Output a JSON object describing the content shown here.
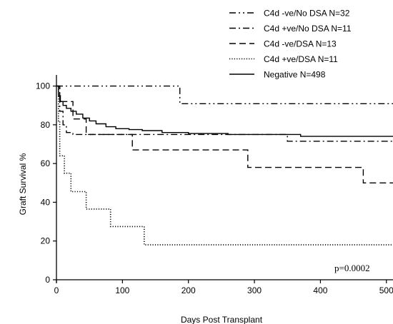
{
  "chart_data": {
    "type": "line",
    "step": true,
    "xlabel": "Days Post Transplant",
    "ylabel": "Graft Survival %",
    "xlim": [
      0,
      510
    ],
    "ylim": [
      0,
      105
    ],
    "xticks": [
      0,
      100,
      200,
      300,
      400,
      500
    ],
    "yticks": [
      0,
      20,
      40,
      60,
      80,
      100
    ],
    "xtick_labels": [
      "0",
      "100",
      "200",
      "300",
      "400",
      "500"
    ],
    "ytick_labels": [
      "0",
      "20",
      "40",
      "60",
      "80",
      "100"
    ],
    "legend_position": "top-right",
    "annotation": "p=0.0002",
    "series": [
      {
        "name": "C4d -ve/No DSA N=32",
        "dash": "dash-dot-dot",
        "x": [
          0,
          187,
          510
        ],
        "y": [
          100,
          90.9,
          90.9
        ]
      },
      {
        "name": "C4d +ve/No DSA N=11",
        "dash": "dash-dot",
        "x": [
          0,
          5,
          10,
          15,
          25,
          350,
          510
        ],
        "y": [
          100,
          87,
          80,
          76,
          75,
          71.5,
          71.5
        ]
      },
      {
        "name": "C4d -ve/DSA N=13",
        "dash": "dashed",
        "x": [
          0,
          5,
          25,
          45,
          115,
          290,
          465,
          510
        ],
        "y": [
          100,
          92,
          83,
          75,
          67,
          58,
          50,
          50
        ]
      },
      {
        "name": "C4d +ve/DSA N=11",
        "dash": "dotted",
        "x": [
          0,
          3,
          5,
          12,
          22,
          45,
          82,
          133,
          510
        ],
        "y": [
          100,
          82,
          64,
          55,
          45.5,
          36.5,
          27.5,
          18,
          18
        ]
      },
      {
        "name": "Negative N=498",
        "dash": "solid",
        "x": [
          0,
          3,
          6,
          10,
          15,
          22,
          30,
          40,
          50,
          60,
          75,
          90,
          110,
          130,
          160,
          200,
          260,
          320,
          370,
          510
        ],
        "y": [
          100,
          95,
          92,
          90,
          88.5,
          87,
          85.5,
          83.5,
          82,
          80.5,
          79,
          78,
          77.5,
          77,
          76,
          75.5,
          75,
          75,
          74,
          74
        ]
      }
    ]
  }
}
